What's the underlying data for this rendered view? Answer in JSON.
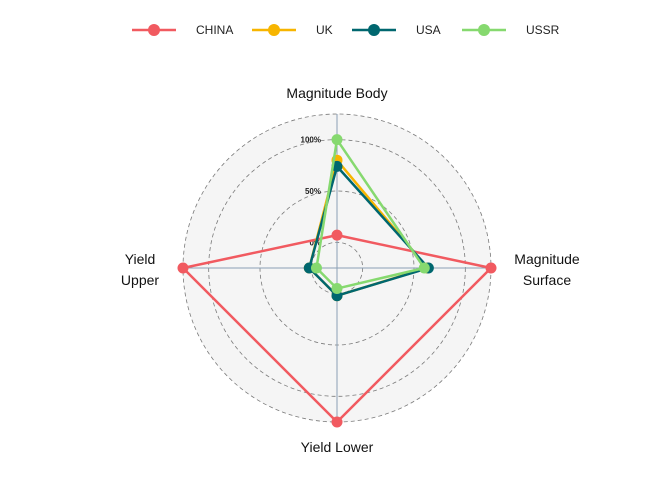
{
  "chart_data": {
    "type": "radar",
    "axes": [
      {
        "label_lines": [
          "Magnitude  Body"
        ]
      },
      {
        "label_lines": [
          "Magnitude",
          "Surface"
        ]
      },
      {
        "label_lines": [
          "Yield Lower"
        ]
      },
      {
        "label_lines": [
          "Yield",
          "Upper"
        ]
      }
    ],
    "grid_levels": [
      0,
      50,
      100
    ],
    "grid_labels": [
      "0%",
      "50%",
      "100%"
    ],
    "ylim": [
      -25,
      125
    ],
    "legend_position": "top",
    "series": [
      {
        "name": "CHINA",
        "color": "#F15A60",
        "values": [
          7,
          125,
          125,
          125
        ]
      },
      {
        "name": "UK",
        "color": "#F7B500",
        "values": [
          80,
          63,
          2,
          2
        ]
      },
      {
        "name": "USA",
        "color": "#00676F",
        "values": [
          74,
          64,
          2,
          2
        ]
      },
      {
        "name": "USSR",
        "color": "#86D96F",
        "values": [
          100,
          60,
          -5,
          -5
        ]
      }
    ]
  }
}
